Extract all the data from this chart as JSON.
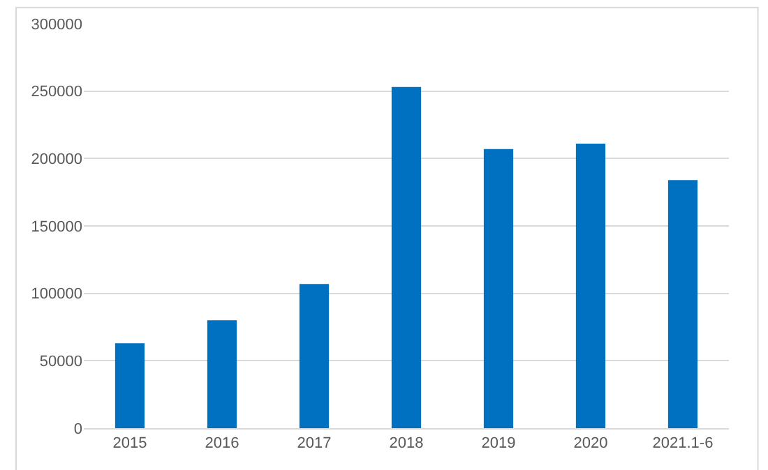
{
  "chart_data": {
    "type": "bar",
    "categories": [
      "2015",
      "2016",
      "2017",
      "2018",
      "2019",
      "2020",
      "2021.1-6"
    ],
    "values": [
      63000,
      80000,
      107000,
      253000,
      207000,
      211000,
      184000
    ],
    "color": "#0070c0",
    "ylim": [
      0,
      300000
    ],
    "yticks": [
      0,
      50000,
      100000,
      150000,
      200000,
      250000,
      300000
    ],
    "grid": "y"
  }
}
